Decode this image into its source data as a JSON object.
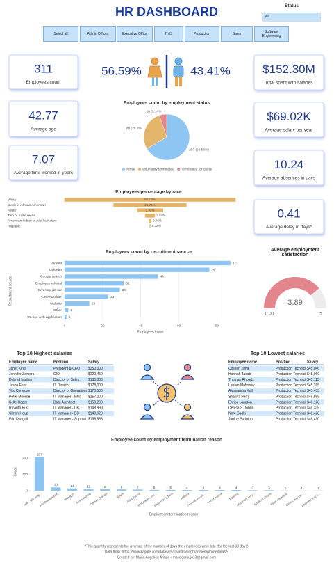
{
  "header": {
    "title": "HR DASHBOARD",
    "status_label": "Status",
    "status_value": "All"
  },
  "filters": [
    "Select all",
    "Admin Offices",
    "Executive Office",
    "IT/IS",
    "Production",
    "Sales",
    "Software Engineering"
  ],
  "kpis": [
    {
      "value": "311",
      "label": "Employees count"
    },
    {
      "value": "42.77",
      "label": "Average age"
    },
    {
      "value": "7.07",
      "label": "Average time worked in years"
    },
    {
      "value": "$152.30M",
      "label": "Total spent with salaries"
    },
    {
      "value": "$69.02K",
      "label": "Average salary per year"
    },
    {
      "value": "10.24",
      "label": "Average absences in days"
    },
    {
      "value": "0.41",
      "label": "Average delay in days*"
    }
  ],
  "gender": [
    "56.59%",
    "43.41%"
  ],
  "chart_data": [
    {
      "type": "pie",
      "title": "Employees count by employment status",
      "categories": [
        "Active",
        "Voluntarily terminated",
        "Terminated for cause"
      ],
      "values": [
        207,
        88,
        16
      ],
      "value_labels": [
        "207 (66.56%)",
        "88 (28.3%)",
        "16 (5.14%)"
      ],
      "colors": [
        "#8ec5f2",
        "#e4b66c",
        "#e3858d"
      ],
      "legend": "bottom"
    },
    {
      "type": "funnel",
      "title": "Employees percentage by race",
      "categories": [
        "White",
        "Black or African American",
        "Asian",
        "Two or more races",
        "American Indian or Alaska Native",
        "Hispanic"
      ],
      "values": [
        60.13,
        25.72,
        9.32,
        3.54,
        0.96,
        0.32
      ],
      "value_labels": [
        "60.13%",
        "25.72%",
        "9.32%",
        "3.54%",
        "0.96%",
        "0.32%"
      ],
      "color": "#e4b66c"
    },
    {
      "type": "hbar",
      "title": "Employees count by recruitment source",
      "categories": [
        "Indeed",
        "LinkedIn",
        "Google search",
        "Employee referral",
        "Diversity job fair",
        "CareerBuilder",
        "Website",
        "Other",
        "On-line web application"
      ],
      "values": [
        87,
        76,
        49,
        31,
        29,
        23,
        13,
        2,
        1
      ],
      "color": "#8ec5f2",
      "xlim": [
        0,
        90
      ],
      "xticks": [
        0,
        20,
        40,
        60,
        80
      ],
      "xlabel": "Employees count",
      "ylabel": "Recruitment source",
      "grid": true
    },
    {
      "type": "gauge",
      "title": "Average employment satisfaction",
      "value": 3.89,
      "min": {
        "value": 0,
        "label": "0.00"
      },
      "max": 5,
      "color": "#e3858d"
    },
    {
      "type": "bar",
      "title": "Employee count by employment termination reason",
      "categories": [
        "N/A - still emp...",
        "Another position",
        "Unhappy",
        "More money",
        "Career change",
        "Hours",
        "Attendance",
        "Relocation out...",
        "Return to school",
        "Military",
        "No-call, no-sh...",
        "Performance",
        "Retiring",
        "Maternity leav...",
        "Medical issues",
        "Fatal attraction",
        "Gross miscon...",
        "Learned that h..."
      ],
      "values": [
        207,
        20,
        14,
        11,
        9,
        8,
        7,
        5,
        5,
        4,
        4,
        4,
        4,
        3,
        3,
        1,
        1,
        1
      ],
      "color": "#8ec5f2",
      "ylim": [
        0,
        230
      ],
      "yticks": [
        0,
        100,
        200
      ],
      "xlabel": "Employment termination reason",
      "ylabel": "Count"
    }
  ],
  "tables": [
    {
      "title": "Top 10 Highest salaries",
      "columns": [
        "Employee name",
        "Position",
        "Salary"
      ],
      "rows": [
        [
          "Janet King",
          "President & CEO",
          "$250,000"
        ],
        [
          "Jennifer Zamora",
          "CIO",
          "$220,450"
        ],
        [
          "Debra Houlihan",
          "Director of Sales",
          "$180,000"
        ],
        [
          "Jason Foss",
          "IT Director",
          "$178,000"
        ],
        [
          "Vito Corleone",
          "Director of Operations",
          "$170,500"
        ],
        [
          "Peter Monroe",
          "IT Manager - Infra",
          "$157,000"
        ],
        [
          "Kelle Hoper",
          "Data Architect",
          "$150,290"
        ],
        [
          "Ricardo Ruiz",
          "IT Manager - DB",
          "$148,999"
        ],
        [
          "Simon Houp",
          "IT Manager - DB",
          "$140,920"
        ],
        [
          "Eric Dougall",
          "IT Manager - Support",
          "$138,888"
        ]
      ]
    },
    {
      "title": "Top 10 Lowest salaries",
      "columns": [
        "Employee name",
        "Position",
        "Salary"
      ],
      "rows": [
        [
          "Colleen Zima",
          "Production Technician I",
          "$45,046"
        ],
        [
          "Hannah Jacobi",
          "Production Technician I",
          "$45,069"
        ],
        [
          "Thomas Rhoads",
          "Production Technician I",
          "$45,115"
        ],
        [
          "Lauren Mahoney",
          "Production Technician I",
          "$45,395"
        ],
        [
          "Alessandra Krill",
          "Production Technician I",
          "$45,433"
        ],
        [
          "Shakira Perry",
          "Production Technician I",
          "$45,998"
        ],
        [
          "Enrico Langton",
          "Production Technician I",
          "$46,120"
        ],
        [
          "Denisa S Dobrin",
          "Production Technician I",
          "$46,335"
        ],
        [
          "Nore Sadki",
          "Production Technician I",
          "$46,428"
        ],
        [
          "Janine Purinton",
          "Production Technician I",
          "$46,430"
        ]
      ]
    }
  ],
  "footer": [
    "*This quantity represents the average of the number of days the employees were late (for the last 30 days)",
    "Data from: https://www.kaggle.com/datasets/ravindrasinghrana/employeedataset",
    "Created by: Maria Angelica Araujo - mariaaaraujo13@gmail.com"
  ]
}
